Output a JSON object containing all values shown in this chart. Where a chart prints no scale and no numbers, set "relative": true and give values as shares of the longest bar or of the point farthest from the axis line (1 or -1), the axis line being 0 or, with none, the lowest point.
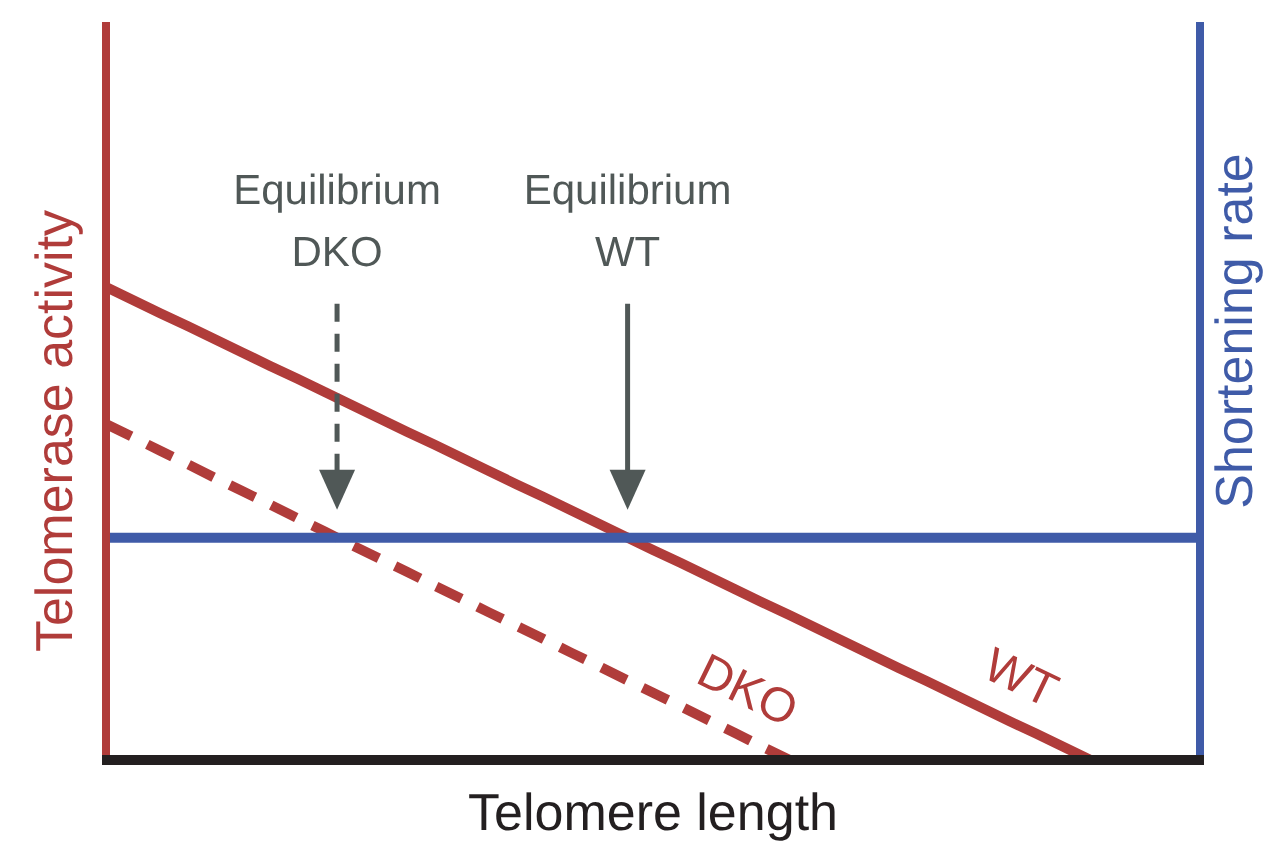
{
  "chart_data": {
    "type": "line",
    "relative": true,
    "xlabel": "Telomere length",
    "ylabel": "Telomerase activity",
    "y2label": "Shortening rate",
    "categories": [
      null,
      null,
      null,
      null,
      null,
      null,
      null,
      null,
      null,
      null,
      null,
      null,
      null,
      null,
      null,
      null,
      null,
      null,
      null,
      null,
      null,
      null,
      null,
      null,
      null,
      null,
      null,
      null,
      null,
      null,
      null,
      null,
      null,
      null,
      null,
      null,
      null,
      null,
      null,
      null,
      null
    ],
    "series": [
      {
        "name": "DKO",
        "color": "#b03c3a",
        "line_style": "dashed",
        "values": [
          0.71,
          0.682,
          0.653,
          0.625,
          0.596,
          0.568,
          0.54,
          0.511,
          0.483,
          0.454,
          0.426,
          0.398,
          0.369,
          0.341,
          0.312,
          0.284,
          0.256,
          0.227,
          0.199,
          0.17,
          0.142,
          0.114,
          0.085,
          0.057,
          0.028,
          0,
          null,
          null,
          null,
          null,
          null,
          null,
          null,
          null,
          null,
          null,
          null,
          null,
          null,
          null,
          null
        ]
      },
      {
        "name": "WT",
        "color": "#b03c3a",
        "line_style": "solid",
        "values": [
          1,
          0.972,
          0.944,
          0.917,
          0.889,
          0.861,
          0.833,
          0.806,
          0.778,
          0.75,
          0.722,
          0.694,
          0.667,
          0.639,
          0.611,
          0.583,
          0.556,
          0.528,
          0.5,
          0.472,
          0.444,
          0.417,
          0.389,
          0.361,
          0.333,
          0.306,
          0.278,
          0.25,
          0.222,
          0.194,
          0.167,
          0.139,
          0.111,
          0.083,
          0.056,
          0.028,
          0,
          null,
          null,
          null,
          null
        ]
      },
      {
        "color": "#3f5ba8",
        "line_style": "solid",
        "values": [
          0.47,
          0.47,
          0.47,
          0.47,
          0.47,
          0.47,
          0.47,
          0.47,
          0.47,
          0.47,
          0.47,
          0.47,
          0.47,
          0.47,
          0.47,
          0.47,
          0.47,
          0.47,
          0.47,
          0.47,
          0.47,
          0.47,
          0.47,
          0.47,
          0.47,
          0.47,
          0.47,
          0.47,
          0.47,
          0.47,
          0.47,
          0.47,
          0.47,
          0.47,
          0.47,
          0.47,
          0.47,
          0.47,
          0.47,
          0.47,
          0.47
        ]
      }
    ],
    "annotations": [
      "Equilibrium\nDKO",
      "Equilibrium\nWT"
    ]
  }
}
